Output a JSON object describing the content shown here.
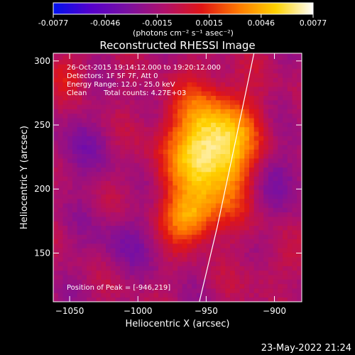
{
  "chart_data": {
    "type": "heatmap",
    "title": "Reconstructed RHESSI Image",
    "xlabel": "Heliocentric X (arcsec)",
    "ylabel": "Heliocentric Y (arcsec)",
    "xlim": [
      -1062,
      -880
    ],
    "ylim": [
      112,
      306
    ],
    "x_ticks": [
      -1050,
      -1000,
      -950,
      -900
    ],
    "y_ticks": [
      150,
      200,
      250,
      300
    ],
    "colorbar": {
      "label": "(photons cm⁻² s⁻¹ asec⁻²)",
      "range": [
        -0.0077,
        0.0077
      ],
      "ticks": [
        "-0.0077",
        "-0.0046",
        "-0.0015",
        "0.0015",
        "0.0046",
        "0.0077"
      ],
      "colors": [
        "#0011ee",
        "#5500cc",
        "#7a10a0",
        "#b0106a",
        "#e01515",
        "#ff7a00",
        "#ffd200",
        "#ffffff"
      ]
    },
    "annotations": [
      "26-Oct-2015 19:14:12.000 to 19:20:12.000",
      "Detectors: 1F 5F 7F, Att 0",
      "Energy Range: 12.0 - 25.0 keV",
      "Clean",
      "Total counts: 4.27E+03"
    ],
    "peak_label": "Position of Peak = [-946,219]",
    "peak": [
      -946,
      219
    ],
    "limb_line": [
      [
        -955,
        112
      ],
      [
        -942,
        170
      ],
      [
        -928,
        240
      ],
      [
        -915,
        306
      ]
    ],
    "source_description": "Bright compact source centered near (-946, 219) with weaker blue/red ringing across the field"
  },
  "timestamp": "23-May-2022 21:24"
}
